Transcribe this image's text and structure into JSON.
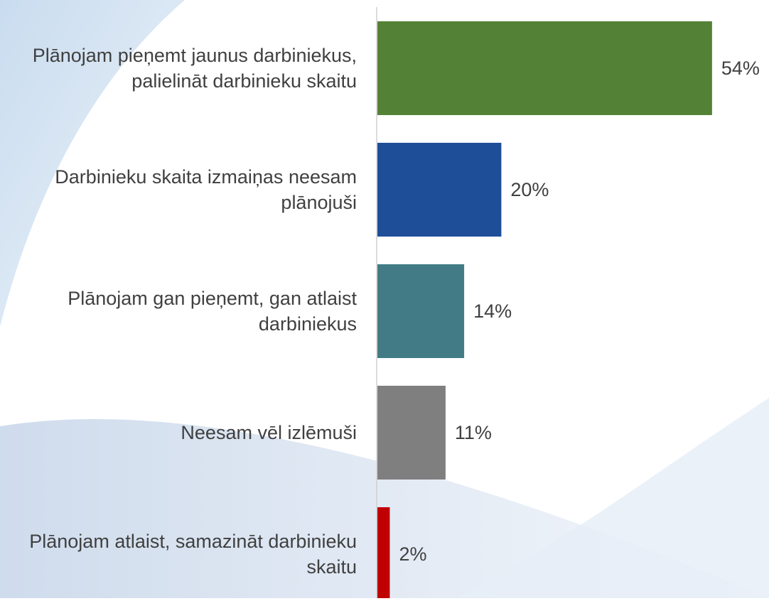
{
  "chart_data": {
    "type": "bar",
    "orientation": "horizontal",
    "categories": [
      "Plānojam pieņemt jaunus darbiniekus, palielināt darbinieku skaitu",
      "Darbinieku skaita izmaiņas neesam plānojuši",
      "Plānojam gan pieņemt, gan atlaist darbiniekus",
      "Neesam vēl izlēmuši",
      "Plānojam atlaist, samazināt darbinieku skaitu"
    ],
    "values": [
      54,
      20,
      14,
      11,
      2
    ],
    "value_labels": [
      "54%",
      "20%",
      "14%",
      "11%",
      "2%"
    ],
    "colors": [
      "#538135",
      "#1f4e99",
      "#427b85",
      "#7f7f7f",
      "#c00000"
    ]
  }
}
